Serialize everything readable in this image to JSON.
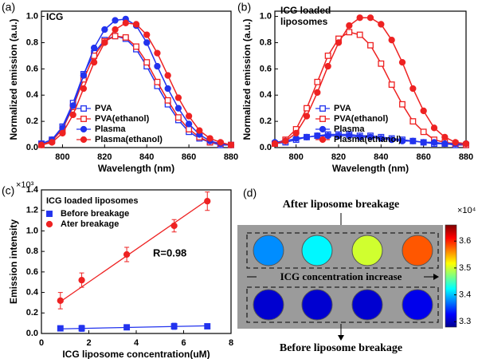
{
  "chart_data": [
    {
      "type": "line",
      "panel_label": "(a)",
      "annotation": "ICG",
      "xlabel": "Wavelength (nm)",
      "ylabel": "Normalized emission (a.u.)",
      "xlim": [
        790,
        880
      ],
      "xticks": [
        800,
        820,
        840,
        860,
        880
      ],
      "ylim": [
        0,
        1.04
      ],
      "yticks": [
        {
          "value": 0,
          "label": "0.0"
        },
        0.2,
        0.4,
        0.6,
        0.8,
        {
          "value": 1,
          "label": "1.0"
        }
      ],
      "x": [
        790,
        795,
        800,
        805,
        810,
        815,
        820,
        825,
        830,
        835,
        840,
        845,
        850,
        855,
        860,
        865,
        870,
        875,
        880
      ],
      "series": [
        {
          "name": "PVA",
          "color": "#2233ee",
          "marker": "square",
          "filled": false,
          "values": [
            0.03,
            0.06,
            0.16,
            0.34,
            0.56,
            0.72,
            0.82,
            0.85,
            0.83,
            0.75,
            0.62,
            0.47,
            0.33,
            0.21,
            0.12,
            0.07,
            0.04,
            0.02,
            0.02
          ]
        },
        {
          "name": "PVA(ethanol)",
          "color": "#ee2222",
          "marker": "square",
          "filled": false,
          "values": [
            0.02,
            0.05,
            0.14,
            0.31,
            0.52,
            0.7,
            0.81,
            0.85,
            0.84,
            0.77,
            0.65,
            0.5,
            0.36,
            0.23,
            0.14,
            0.08,
            0.04,
            0.03,
            0.02
          ]
        },
        {
          "name": "Plasma",
          "color": "#2233ee",
          "marker": "circle",
          "filled": true,
          "values": [
            0.03,
            0.06,
            0.15,
            0.32,
            0.55,
            0.76,
            0.9,
            0.97,
            0.98,
            0.93,
            0.8,
            0.62,
            0.45,
            0.3,
            0.18,
            0.1,
            0.05,
            0.03,
            0.02
          ]
        },
        {
          "name": "Plasma(ethanol)",
          "color": "#ee2222",
          "marker": "circle",
          "filled": true,
          "values": [
            0.02,
            0.04,
            0.11,
            0.25,
            0.45,
            0.65,
            0.8,
            0.9,
            0.95,
            0.94,
            0.86,
            0.72,
            0.55,
            0.38,
            0.24,
            0.13,
            0.07,
            0.04,
            0.02
          ]
        }
      ]
    },
    {
      "type": "line",
      "panel_label": "(b)",
      "annotation": [
        "ICG loaded",
        "liposomes"
      ],
      "xlabel": "Wavelength (nm)",
      "ylabel": "Normalized emission (a.u.)",
      "xlim": [
        790,
        880
      ],
      "xticks": [
        800,
        820,
        840,
        860,
        880
      ],
      "ylim": [
        0,
        1.04
      ],
      "yticks": [
        {
          "value": 0,
          "label": "0.0"
        },
        0.2,
        0.4,
        0.6,
        0.8,
        {
          "value": 1,
          "label": "1.0"
        }
      ],
      "x": [
        790,
        795,
        800,
        805,
        810,
        815,
        820,
        825,
        830,
        835,
        840,
        845,
        850,
        855,
        860,
        865,
        870,
        875,
        880
      ],
      "series": [
        {
          "name": "PVA",
          "color": "#2233ee",
          "marker": "square",
          "filled": false,
          "values": [
            0.03,
            0.04,
            0.06,
            0.08,
            0.09,
            0.1,
            0.1,
            0.1,
            0.09,
            0.09,
            0.08,
            0.07,
            0.06,
            0.05,
            0.04,
            0.03,
            0.03,
            0.02,
            0.02
          ]
        },
        {
          "name": "PVA(ethanol)",
          "color": "#ee2222",
          "marker": "square",
          "filled": false,
          "values": [
            0.03,
            0.06,
            0.14,
            0.3,
            0.5,
            0.7,
            0.83,
            0.88,
            0.86,
            0.78,
            0.64,
            0.48,
            0.33,
            0.2,
            0.12,
            0.06,
            0.04,
            0.03,
            0.02
          ]
        },
        {
          "name": "Plasma",
          "color": "#2233ee",
          "marker": "circle",
          "filled": true,
          "values": [
            0.04,
            0.05,
            0.07,
            0.08,
            0.09,
            0.09,
            0.09,
            0.09,
            0.08,
            0.08,
            0.07,
            0.06,
            0.05,
            0.05,
            0.04,
            0.04,
            0.03,
            0.03,
            0.03
          ]
        },
        {
          "name": "Plasma(ethanol)",
          "color": "#ee2222",
          "marker": "circle",
          "filled": true,
          "values": [
            0.03,
            0.05,
            0.11,
            0.24,
            0.42,
            0.62,
            0.8,
            0.93,
            0.99,
            0.99,
            0.94,
            0.82,
            0.65,
            0.45,
            0.28,
            0.15,
            0.08,
            0.04,
            0.03
          ]
        }
      ]
    },
    {
      "type": "scatter",
      "panel_label": "(c)",
      "legend_title": "ICG loaded liposomes",
      "annotation": "R=0.98",
      "axis_multiplier": "×10³",
      "xlabel": "ICG liposome concentration(uM)",
      "ylabel": "Emission intensity",
      "xlim": [
        0,
        8
      ],
      "xticks": [
        0,
        2,
        4,
        6,
        8
      ],
      "ylim": [
        0,
        1.4
      ],
      "yticks": [
        {
          "value": 0,
          "label": "0.0"
        },
        0.2,
        0.4,
        0.6,
        0.8,
        {
          "value": 1,
          "label": "1.0"
        },
        1.2,
        1.4
      ],
      "x": [
        0.8,
        1.7,
        3.6,
        5.6,
        7.0
      ],
      "series": [
        {
          "name": "Before breakage",
          "color": "#2233ee",
          "marker": "square",
          "filled": true,
          "values": [
            0.05,
            0.05,
            0.06,
            0.07,
            0.07
          ],
          "errors": [
            0.02,
            0.03,
            0.02,
            0.03,
            0.02
          ],
          "fit": {
            "x": [
              0.8,
              7.0
            ],
            "values": [
              0.045,
              0.075
            ]
          }
        },
        {
          "name": "Ater breakage",
          "color": "#ee2222",
          "marker": "circle",
          "filled": true,
          "values": [
            0.32,
            0.52,
            0.77,
            1.05,
            1.29
          ],
          "errors": [
            0.08,
            0.07,
            0.07,
            0.06,
            0.09
          ],
          "fit": {
            "x": [
              0.8,
              7.0
            ],
            "values": [
              0.31,
              1.3
            ]
          }
        }
      ]
    },
    {
      "type": "image",
      "panel_label": "(d)",
      "top_label": "After liposome breakage",
      "middle_label": "ICG concentration increase",
      "bottom_label": "Before liposome breakage",
      "color_multiplier": "×10⁴",
      "clim": [
        3.28,
        3.66
      ],
      "cticks": [
        3.3,
        3.4,
        3.5,
        3.6
      ],
      "rows": [
        [
          3.38,
          3.42,
          3.5,
          3.58
        ],
        [
          3.31,
          3.31,
          3.31,
          3.32
        ]
      ]
    }
  ]
}
